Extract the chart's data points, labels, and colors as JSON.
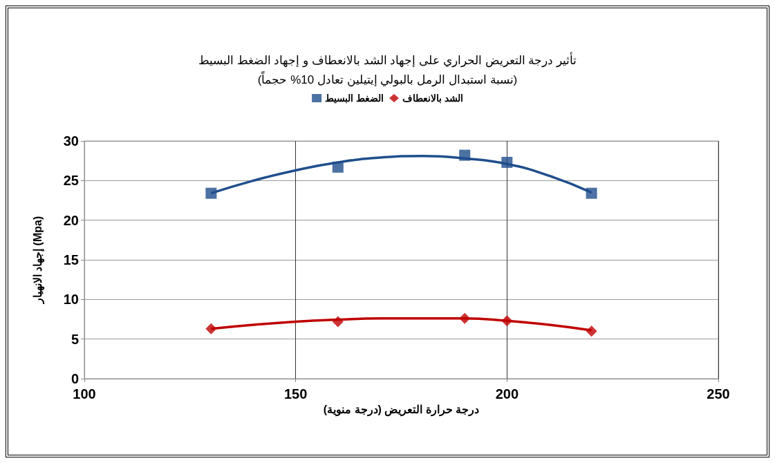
{
  "chart_data": {
    "type": "scatter",
    "title": "تأثير درجة التعريض الحراري على إجهاد الشد بالانعطاف و إجهاد الضغط البسيط",
    "subtitle": "(نسبة استبدال الرمل بالبولي إيتيلين تعادل 10% حجماً)",
    "xlabel": "درجة حرارة التعريض (درجة منوية)",
    "ylabel": "إجهاد الانهيار (Mpa)",
    "xlim": [
      100,
      250
    ],
    "xticks": [
      100,
      150,
      200,
      250
    ],
    "ylim": [
      0,
      30
    ],
    "yticks": [
      0,
      5,
      10,
      15,
      20,
      25,
      30
    ],
    "grid": true,
    "legend": "top",
    "series": [
      {
        "name": "الضغط البسيط",
        "color": "#1f4e8c",
        "marker": "square",
        "x": [
          130,
          160,
          190,
          200,
          220
        ],
        "values": [
          23.4,
          26.7,
          28.2,
          27.3,
          23.4
        ]
      },
      {
        "name": "الشد بالانعطاف",
        "color": "#c00000",
        "marker": "diamond",
        "x": [
          130,
          160,
          190,
          200,
          220
        ],
        "values": [
          6.3,
          7.2,
          7.6,
          7.3,
          6.0
        ]
      },
      {
        "type": "line",
        "color": "#1f4e8c",
        "marker": "none",
        "x": [
          130,
          140,
          150,
          160,
          170,
          180,
          190,
          200,
          210,
          220
        ],
        "values": [
          23.4,
          25.0,
          26.3,
          27.3,
          27.9,
          28.1,
          27.8,
          27.1,
          25.6,
          23.5
        ]
      },
      {
        "type": "line",
        "color": "#c00000",
        "marker": "none",
        "x": [
          130,
          140,
          150,
          160,
          170,
          180,
          190,
          200,
          210,
          220
        ],
        "values": [
          6.3,
          6.8,
          7.2,
          7.45,
          7.6,
          7.6,
          7.6,
          7.3,
          6.8,
          6.1
        ]
      }
    ]
  }
}
